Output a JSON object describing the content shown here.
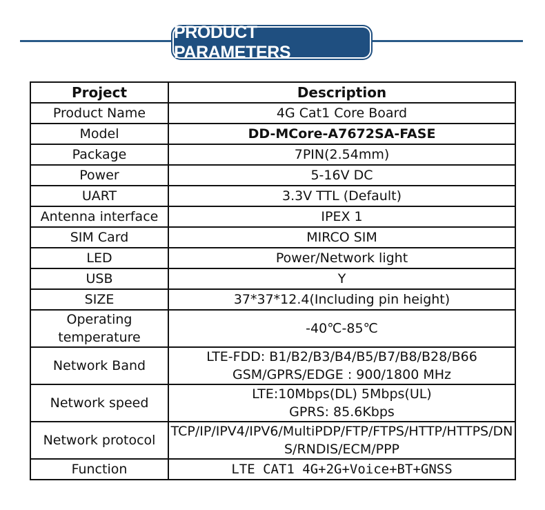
{
  "header": {
    "title": "PRODUCT PARAMETERS"
  },
  "table": {
    "columns": [
      "Project",
      "Description"
    ],
    "rows": [
      {
        "project": "Product Name",
        "description": [
          "4G Cat1 Core Board"
        ]
      },
      {
        "project": "Model",
        "description": [
          "DD-MCore-A7672SA-FASE"
        ]
      },
      {
        "project": "Package",
        "description": [
          "7PIN(2.54mm)"
        ]
      },
      {
        "project": "Power",
        "description": [
          "5-16V DC"
        ]
      },
      {
        "project": "UART",
        "description": [
          "3.3V TTL (Default)"
        ]
      },
      {
        "project": "Antenna interface",
        "description": [
          "IPEX 1"
        ]
      },
      {
        "project": "SIM Card",
        "description": [
          "MIRCO SIM"
        ]
      },
      {
        "project": "LED",
        "description": [
          "Power/Network light"
        ]
      },
      {
        "project": "USB",
        "description": [
          "Y"
        ]
      },
      {
        "project": "SIZE",
        "description": [
          "37*37*12.4(Including pin height)"
        ]
      },
      {
        "project": "Operating temperature",
        "description": [
          "-40℃-85℃"
        ]
      },
      {
        "project": "Network Band",
        "description": [
          "LTE-FDD:  B1/B2/B3/B4/B5/B7/B8/B28/B66",
          "GSM/GPRS/EDGE :  900/1800 MHz"
        ]
      },
      {
        "project": "Network speed",
        "description": [
          "LTE:10Mbps(DL)  5Mbps(UL)",
          "GPRS: 85.6Kbps"
        ]
      },
      {
        "project": "Network protocol",
        "description": [
          "TCP/IP/IPV4/IPV6/MultiPDP/FTP/FTPS/HTTP/HTTPS/DNS/RNDIS/ECM/PPP"
        ]
      },
      {
        "project": "Function",
        "description": [
          "LTE CAT1 4G+2G+Voice+BT+GNSS"
        ]
      }
    ]
  }
}
